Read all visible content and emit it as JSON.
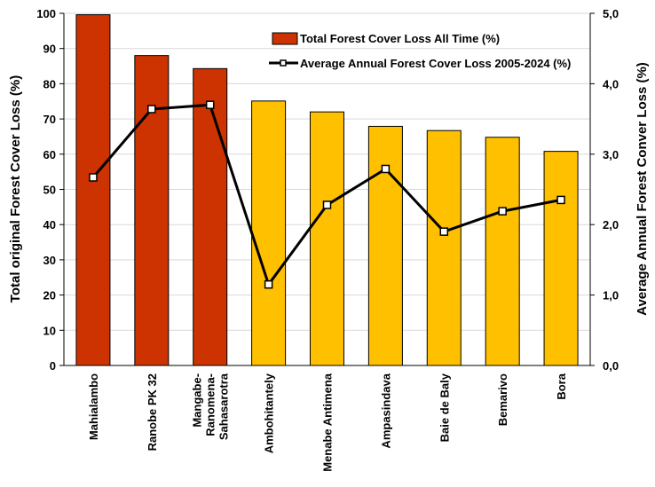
{
  "chart_data": {
    "type": "bar",
    "categories": [
      [
        "Mahialambo"
      ],
      [
        "Ranobe PK 32"
      ],
      [
        "Mangabe-",
        "Ranomena-",
        "Sahasarotra"
      ],
      [
        "Ambohitantely"
      ],
      [
        "Menabe Antimena"
      ],
      [
        "Ampasindava"
      ],
      [
        "Baie de Baly"
      ],
      [
        "Bemarivo"
      ],
      [
        "Bora"
      ]
    ],
    "series": [
      {
        "name": "Total Forest Cover  Loss All Time (%)",
        "type": "bar",
        "axis": "left",
        "values": [
          99.6,
          88.0,
          84.3,
          75.1,
          72.0,
          67.9,
          66.7,
          64.8,
          60.8
        ],
        "colors": [
          "#cc3300",
          "#cc3300",
          "#cc3300",
          "#ffc000",
          "#ffc000",
          "#ffc000",
          "#ffc000",
          "#ffc000",
          "#ffc000"
        ]
      },
      {
        "name": "Average Annual Forest Cover Loss 2005-2024 (%)",
        "type": "line",
        "axis": "right",
        "values": [
          2.67,
          3.64,
          3.7,
          1.15,
          2.28,
          2.79,
          1.9,
          2.19,
          2.35
        ],
        "color": "#000000"
      }
    ],
    "ylabel": "Total original Forest Cover Loss (%)",
    "y2label": "Average Annual Forest Conver Loss (%)",
    "ylim": [
      0,
      100
    ],
    "y2lim": [
      0,
      5
    ],
    "yticks": [
      "0",
      "10",
      "20",
      "30",
      "40",
      "50",
      "60",
      "70",
      "80",
      "90",
      "100"
    ],
    "y2ticks": [
      "0,0",
      "1,0",
      "2,0",
      "3,0",
      "4,0",
      "5,0"
    ],
    "grid": true,
    "legend": "top-right"
  }
}
